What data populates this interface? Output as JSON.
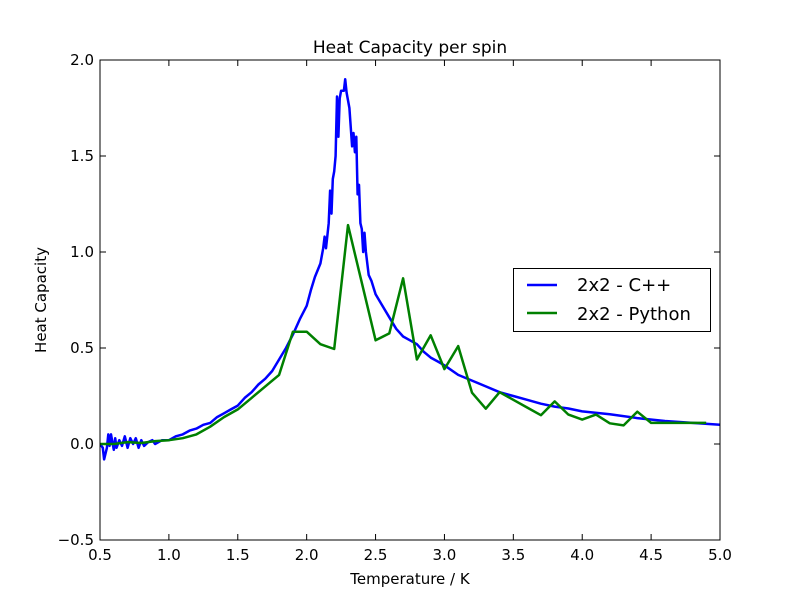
{
  "chart_data": {
    "type": "line",
    "title": "Heat Capacity per spin",
    "xlabel": "Temperature / K",
    "ylabel": "Heat Capacity",
    "xlim": [
      0.5,
      5.0
    ],
    "ylim": [
      -0.5,
      2.0
    ],
    "xticks": [
      "0.5",
      "1.0",
      "1.5",
      "2.0",
      "2.5",
      "3.0",
      "3.5",
      "4.0",
      "4.5",
      "5.0"
    ],
    "yticks": [
      "−0.5",
      "0.0",
      "0.5",
      "1.0",
      "1.5",
      "2.0"
    ],
    "xtick_values": [
      0.5,
      1.0,
      1.5,
      2.0,
      2.5,
      3.0,
      3.5,
      4.0,
      4.5,
      5.0
    ],
    "ytick_values": [
      -0.5,
      0.0,
      0.5,
      1.0,
      1.5,
      2.0
    ],
    "grid": false,
    "legend_placement": "center-right",
    "series": [
      {
        "name": "2x2 - C++",
        "color": "#0000ff",
        "points": [
          [
            0.5,
            0.0
          ],
          [
            0.52,
            -0.02
          ],
          [
            0.53,
            -0.08
          ],
          [
            0.55,
            -0.02
          ],
          [
            0.56,
            0.05
          ],
          [
            0.57,
            -0.01
          ],
          [
            0.58,
            0.05
          ],
          [
            0.6,
            -0.03
          ],
          [
            0.61,
            0.03
          ],
          [
            0.62,
            -0.02
          ],
          [
            0.64,
            0.02
          ],
          [
            0.66,
            -0.01
          ],
          [
            0.68,
            0.04
          ],
          [
            0.7,
            -0.02
          ],
          [
            0.72,
            0.03
          ],
          [
            0.74,
            0.0
          ],
          [
            0.76,
            0.03
          ],
          [
            0.78,
            -0.02
          ],
          [
            0.8,
            0.02
          ],
          [
            0.82,
            -0.01
          ],
          [
            0.85,
            0.01
          ],
          [
            0.88,
            0.02
          ],
          [
            0.9,
            0.0
          ],
          [
            0.95,
            0.02
          ],
          [
            1.0,
            0.02
          ],
          [
            1.05,
            0.04
          ],
          [
            1.1,
            0.05
          ],
          [
            1.15,
            0.07
          ],
          [
            1.2,
            0.08
          ],
          [
            1.25,
            0.1
          ],
          [
            1.3,
            0.11
          ],
          [
            1.35,
            0.14
          ],
          [
            1.4,
            0.16
          ],
          [
            1.45,
            0.18
          ],
          [
            1.5,
            0.2
          ],
          [
            1.55,
            0.24
          ],
          [
            1.6,
            0.27
          ],
          [
            1.65,
            0.31
          ],
          [
            1.7,
            0.34
          ],
          [
            1.75,
            0.38
          ],
          [
            1.8,
            0.44
          ],
          [
            1.85,
            0.5
          ],
          [
            1.9,
            0.57
          ],
          [
            1.95,
            0.65
          ],
          [
            2.0,
            0.72
          ],
          [
            2.03,
            0.8
          ],
          [
            2.06,
            0.87
          ],
          [
            2.1,
            0.94
          ],
          [
            2.12,
            1.02
          ],
          [
            2.13,
            1.08
          ],
          [
            2.14,
            1.02
          ],
          [
            2.16,
            1.15
          ],
          [
            2.17,
            1.32
          ],
          [
            2.18,
            1.2
          ],
          [
            2.19,
            1.38
          ],
          [
            2.2,
            1.42
          ],
          [
            2.21,
            1.5
          ],
          [
            2.22,
            1.81
          ],
          [
            2.23,
            1.6
          ],
          [
            2.24,
            1.8
          ],
          [
            2.25,
            1.84
          ],
          [
            2.27,
            1.84
          ],
          [
            2.28,
            1.9
          ],
          [
            2.29,
            1.83
          ],
          [
            2.31,
            1.75
          ],
          [
            2.33,
            1.55
          ],
          [
            2.34,
            1.62
          ],
          [
            2.35,
            1.52
          ],
          [
            2.36,
            1.6
          ],
          [
            2.37,
            1.3
          ],
          [
            2.38,
            1.35
          ],
          [
            2.39,
            1.15
          ],
          [
            2.4,
            1.12
          ],
          [
            2.41,
            1.0
          ],
          [
            2.42,
            1.1
          ],
          [
            2.43,
            1.0
          ],
          [
            2.45,
            0.88
          ],
          [
            2.47,
            0.85
          ],
          [
            2.5,
            0.78
          ],
          [
            2.55,
            0.72
          ],
          [
            2.6,
            0.66
          ],
          [
            2.65,
            0.6
          ],
          [
            2.7,
            0.56
          ],
          [
            2.75,
            0.54
          ],
          [
            2.8,
            0.52
          ],
          [
            2.85,
            0.48
          ],
          [
            2.9,
            0.45
          ],
          [
            2.95,
            0.43
          ],
          [
            3.0,
            0.41
          ],
          [
            3.1,
            0.36
          ],
          [
            3.2,
            0.33
          ],
          [
            3.3,
            0.3
          ],
          [
            3.4,
            0.27
          ],
          [
            3.5,
            0.25
          ],
          [
            3.6,
            0.23
          ],
          [
            3.7,
            0.21
          ],
          [
            3.8,
            0.195
          ],
          [
            3.9,
            0.185
          ],
          [
            4.0,
            0.17
          ],
          [
            4.2,
            0.155
          ],
          [
            4.4,
            0.135
          ],
          [
            4.6,
            0.12
          ],
          [
            4.8,
            0.11
          ],
          [
            5.0,
            0.1
          ]
        ]
      },
      {
        "name": "2x2 - Python",
        "color": "#008000",
        "points": [
          [
            0.5,
            0.0
          ],
          [
            0.6,
            0.0
          ],
          [
            0.7,
            0.01
          ],
          [
            0.8,
            0.005
          ],
          [
            0.9,
            0.015
          ],
          [
            1.0,
            0.02
          ],
          [
            1.1,
            0.03
          ],
          [
            1.2,
            0.05
          ],
          [
            1.3,
            0.09
          ],
          [
            1.4,
            0.14
          ],
          [
            1.5,
            0.18
          ],
          [
            1.6,
            0.24
          ],
          [
            1.7,
            0.3
          ],
          [
            1.8,
            0.36
          ],
          [
            1.9,
            0.585
          ],
          [
            2.0,
            0.585
          ],
          [
            2.1,
            0.52
          ],
          [
            2.2,
            0.495
          ],
          [
            2.3,
            1.14
          ],
          [
            2.4,
            0.84
          ],
          [
            2.5,
            0.54
          ],
          [
            2.6,
            0.576
          ],
          [
            2.7,
            0.863
          ],
          [
            2.8,
            0.44
          ],
          [
            2.9,
            0.566
          ],
          [
            3.0,
            0.39
          ],
          [
            3.1,
            0.51
          ],
          [
            3.2,
            0.267
          ],
          [
            3.3,
            0.184
          ],
          [
            3.4,
            0.27
          ],
          [
            3.5,
            0.23
          ],
          [
            3.6,
            0.19
          ],
          [
            3.7,
            0.15
          ],
          [
            3.8,
            0.222
          ],
          [
            3.9,
            0.153
          ],
          [
            4.0,
            0.127
          ],
          [
            4.1,
            0.153
          ],
          [
            4.2,
            0.108
          ],
          [
            4.3,
            0.097
          ],
          [
            4.4,
            0.168
          ],
          [
            4.5,
            0.11
          ],
          [
            4.6,
            0.11
          ],
          [
            4.7,
            0.11
          ],
          [
            4.8,
            0.11
          ],
          [
            4.9,
            0.11
          ]
        ]
      }
    ]
  }
}
